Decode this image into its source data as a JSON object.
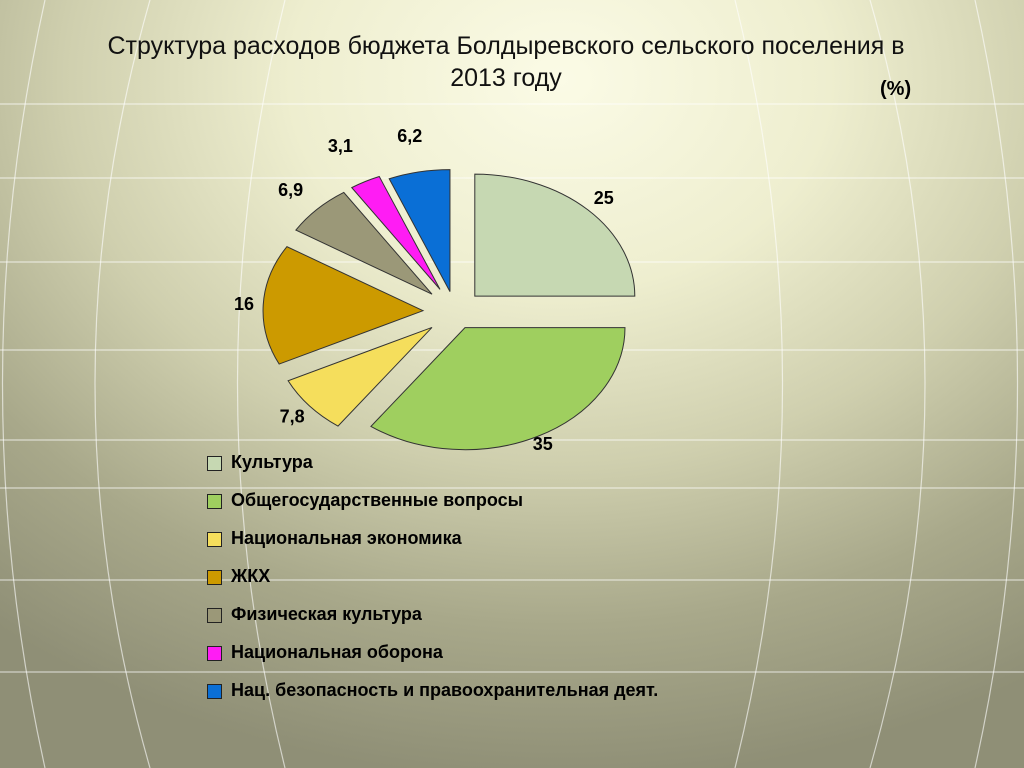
{
  "title": "Структура расходов бюджета Болдыревского сельского поселения в 2013 году",
  "unit": "(%)",
  "chart_data": {
    "type": "pie",
    "title": "Структура расходов бюджета Болдыревского сельского поселения в 2013 году",
    "unit": "(%)",
    "exploded": true,
    "legend_position": "bottom",
    "slices": [
      {
        "name": "Культура",
        "value": 25,
        "label": "25",
        "color": "#c6d8b2"
      },
      {
        "name": "Общегосударственные вопросы",
        "value": 35,
        "label": "35",
        "color": "#9fcf5f"
      },
      {
        "name": "Национальная экономика",
        "value": 7.8,
        "label": "7,8",
        "color": "#f5de5c"
      },
      {
        "name": "ЖКХ",
        "value": 16,
        "label": "16",
        "color": "#cc9a00"
      },
      {
        "name": "Физическая культура",
        "value": 6.9,
        "label": "6,9",
        "color": "#9b9878"
      },
      {
        "name": "Национальная оборона",
        "value": 3.1,
        "label": "3,1",
        "color": "#ff1cf4"
      },
      {
        "name": "Нац. безопасность и правоохранительная деят.",
        "value": 6.2,
        "label": "6,2",
        "color": "#0a6fd6"
      }
    ]
  }
}
